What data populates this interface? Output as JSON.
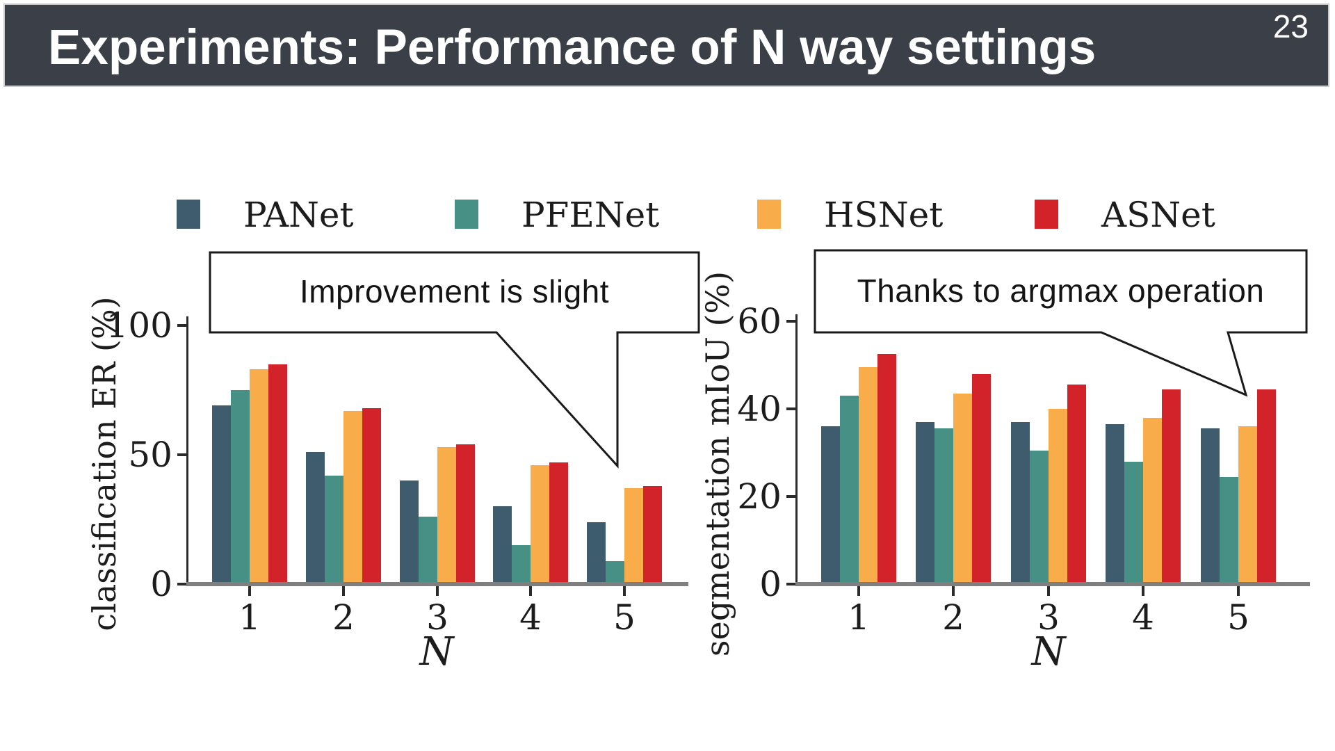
{
  "header": {
    "title": "Experiments: Performance of N way settings",
    "page_number": "23"
  },
  "legend": {
    "position": "top",
    "items": [
      {
        "label": "PANet",
        "color": "#3e5c6e"
      },
      {
        "label": "PFENet",
        "color": "#469086"
      },
      {
        "label": "HSNet",
        "color": "#f9ac4a"
      },
      {
        "label": "ASNet",
        "color": "#d2222a"
      }
    ]
  },
  "chart_data": [
    {
      "type": "bar",
      "title": "",
      "xlabel": "N",
      "ylabel": "classification ER (%)",
      "categories": [
        "1",
        "2",
        "3",
        "4",
        "5"
      ],
      "yticks": [
        0,
        50,
        100
      ],
      "ylim": [
        0,
        103
      ],
      "grid": false,
      "legend_position": "top-shared",
      "series": [
        {
          "name": "PANet",
          "values": [
            69,
            51,
            40,
            30,
            24
          ]
        },
        {
          "name": "PFENet",
          "values": [
            75,
            42,
            26,
            15,
            9
          ]
        },
        {
          "name": "HSNet",
          "values": [
            83,
            67,
            53,
            46,
            37
          ]
        },
        {
          "name": "ASNet",
          "values": [
            85,
            68,
            54,
            47,
            38
          ]
        }
      ],
      "callout": "Improvement is slight"
    },
    {
      "type": "bar",
      "title": "",
      "xlabel": "N",
      "ylabel": "segmentation mIoU (%)",
      "categories": [
        "1",
        "2",
        "3",
        "4",
        "5"
      ],
      "yticks": [
        0,
        20,
        40,
        60
      ],
      "ylim": [
        0,
        61
      ],
      "grid": false,
      "legend_position": "top-shared",
      "series": [
        {
          "name": "PANet",
          "values": [
            36,
            37,
            37,
            36.5,
            35.5
          ]
        },
        {
          "name": "PFENet",
          "values": [
            43,
            35.5,
            30.5,
            28,
            24.5
          ]
        },
        {
          "name": "HSNet",
          "values": [
            49.5,
            43.5,
            40,
            38,
            36
          ]
        },
        {
          "name": "ASNet",
          "values": [
            52.5,
            48,
            45.5,
            44.5,
            44.5
          ]
        }
      ],
      "callout": "Thanks to argmax operation"
    }
  ],
  "colors": {
    "header_bg": "#3b3f48",
    "axis": "#2b2b2b",
    "baseline": "#7f7f7f",
    "callout_border": "#1a1a1a"
  }
}
